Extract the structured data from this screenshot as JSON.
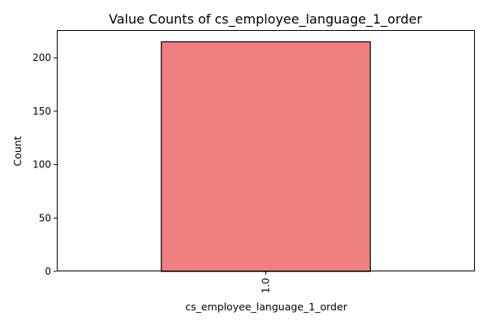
{
  "chart_data": {
    "type": "bar",
    "title": "Value Counts of cs_employee_language_1_order",
    "xlabel": "cs_employee_language_1_order",
    "ylabel": "Count",
    "categories": [
      "1.0"
    ],
    "values": [
      215
    ],
    "ylim": [
      0,
      226
    ],
    "yticks": [
      0,
      50,
      100,
      150,
      200
    ],
    "bar_color": "#f08080",
    "edge_color": "#000000",
    "grid": false,
    "legend": false
  }
}
